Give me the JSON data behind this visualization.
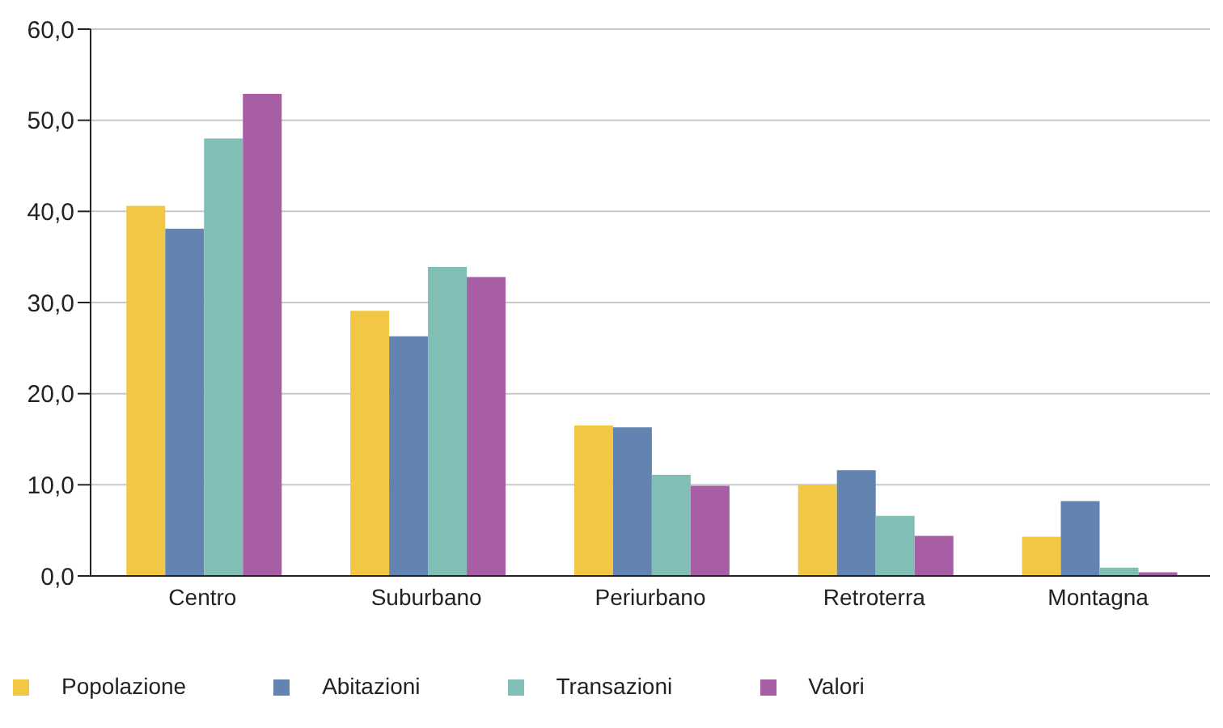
{
  "chart_data": {
    "type": "bar",
    "categories": [
      "Centro",
      "Suburbano",
      "Periurbano",
      "Retroterra",
      "Montagna"
    ],
    "series": [
      {
        "name": "Popolazione",
        "color": "#f2c744",
        "values": [
          40.6,
          29.1,
          16.5,
          10.0,
          4.3
        ]
      },
      {
        "name": "Abitazioni",
        "color": "#6384b0",
        "values": [
          38.1,
          26.3,
          16.3,
          11.6,
          8.2
        ]
      },
      {
        "name": "Transazioni",
        "color": "#80beb6",
        "values": [
          48.0,
          33.9,
          11.1,
          6.6,
          0.9
        ]
      },
      {
        "name": "Valori",
        "color": "#a85ea5",
        "values": [
          52.9,
          32.8,
          9.9,
          4.4,
          0.4
        ]
      }
    ],
    "ylim": [
      0,
      60
    ],
    "yticks": [
      {
        "value": 0,
        "label": "0,0"
      },
      {
        "value": 10,
        "label": "10,0"
      },
      {
        "value": 20,
        "label": "20,0"
      },
      {
        "value": 30,
        "label": "30,0"
      },
      {
        "value": 40,
        "label": "40,0"
      },
      {
        "value": 50,
        "label": "50,0"
      },
      {
        "value": 60,
        "label": "60,0"
      }
    ],
    "grid": "y",
    "legend": "bottom left"
  }
}
